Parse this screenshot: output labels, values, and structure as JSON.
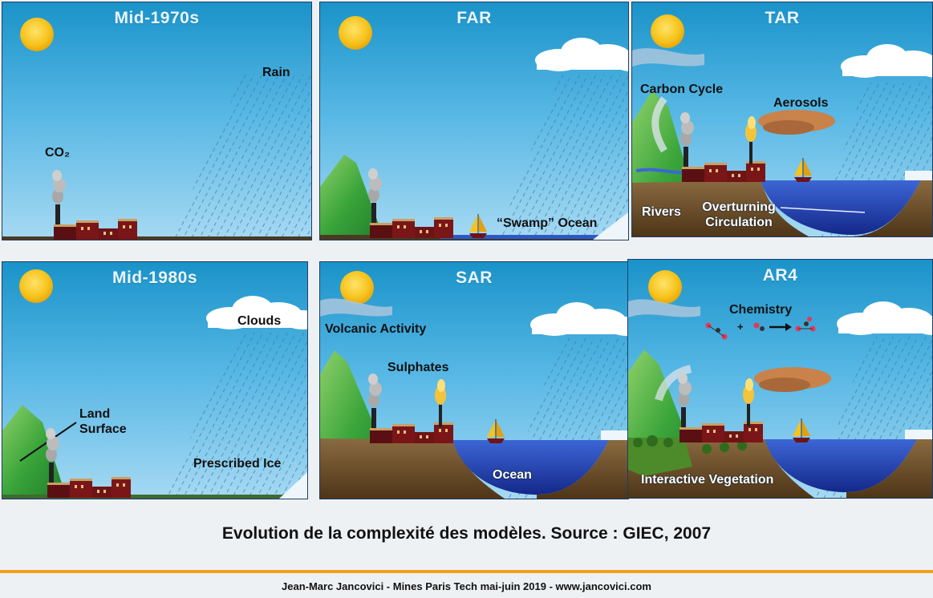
{
  "panels": [
    {
      "title": "Mid-1970s",
      "labels": {
        "rain": "Rain",
        "co2": "CO₂"
      }
    },
    {
      "title": "FAR",
      "labels": {
        "swamp_ocean": "“Swamp” Ocean"
      }
    },
    {
      "title": "TAR",
      "labels": {
        "carbon_cycle": "Carbon Cycle",
        "aerosols": "Aerosols",
        "rivers": "Rivers",
        "overturning": "Overturning Circulation"
      }
    },
    {
      "title": "Mid-1980s",
      "labels": {
        "clouds": "Clouds",
        "land_surface": "Land Surface",
        "prescribed_ice": "Prescribed Ice"
      }
    },
    {
      "title": "SAR",
      "labels": {
        "volcanic": "Volcanic Activity",
        "sulphates": "Sulphates",
        "ocean": "Ocean"
      }
    },
    {
      "title": "AR4",
      "labels": {
        "chemistry": "Chemistry",
        "interactive_vegetation": "Interactive Vegetation"
      }
    }
  ],
  "caption": "Evolution de la complexité des modèles. Source : GIEC, 2007",
  "footer": "Jean-Marc Jancovici - Mines Paris Tech mai-juin 2019 - www.jancovici.com",
  "colors": {
    "sky": "#3ea8dc",
    "sun": "#f7c51c",
    "accent_rule": "#f0a01c",
    "ocean": "#1f3fb0",
    "earth": "#6b4a2a",
    "factory": "#6e1416"
  }
}
